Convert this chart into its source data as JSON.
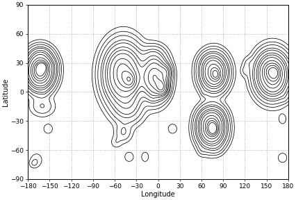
{
  "title": "",
  "xlabel": "Longitude",
  "ylabel": "Latitude",
  "xlim": [
    -180,
    180
  ],
  "ylim": [
    -90,
    90
  ],
  "xticks": [
    -180,
    -150,
    -120,
    -90,
    -60,
    -30,
    0,
    30,
    60,
    90,
    120,
    150,
    180
  ],
  "yticks": [
    -90,
    -60,
    -30,
    0,
    30,
    60,
    90
  ],
  "background_color": "#ffffff",
  "contour_color": "#000000",
  "grid_color": "#999999",
  "contour_levels": [
    2,
    5,
    10,
    20,
    30,
    50,
    70,
    100,
    150,
    200,
    250,
    300
  ],
  "figsize": [
    4.27,
    2.88
  ],
  "dpi": 100
}
